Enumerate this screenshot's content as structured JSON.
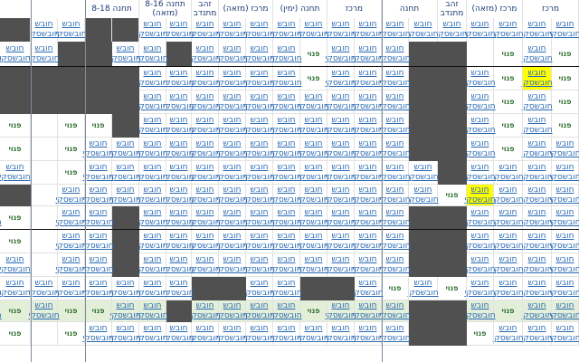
{
  "header": {
    "groups": [
      "מרכז",
      "מרכז (מזאה)",
      "זהב מתנדב",
      "תחנה",
      "מרכז",
      "תחנה (ימין)",
      "מרכז (מזאה)",
      "זהב מתנדב",
      "תחנה 8-16 (מזאה)",
      "תחנה 8-18"
    ],
    "sub_label": "חובש חובשסקי",
    "busy_label": "חובש חובשסקי",
    "free_label": "פנוי"
  },
  "cell_labels": {
    "busy": "חובש חובשסקי",
    "free": "פנוי"
  },
  "colors": {
    "dark_cell": "#505050",
    "highlight_row": "#e3efd9",
    "yellow_cell": "#ffff00",
    "free_text": "#2f6f2f",
    "busy_link": "#2a6ab4",
    "header_text": "#1a3b73"
  },
  "grid": {
    "rows": 13,
    "cols": 22,
    "highlighted_row": 11
  }
}
